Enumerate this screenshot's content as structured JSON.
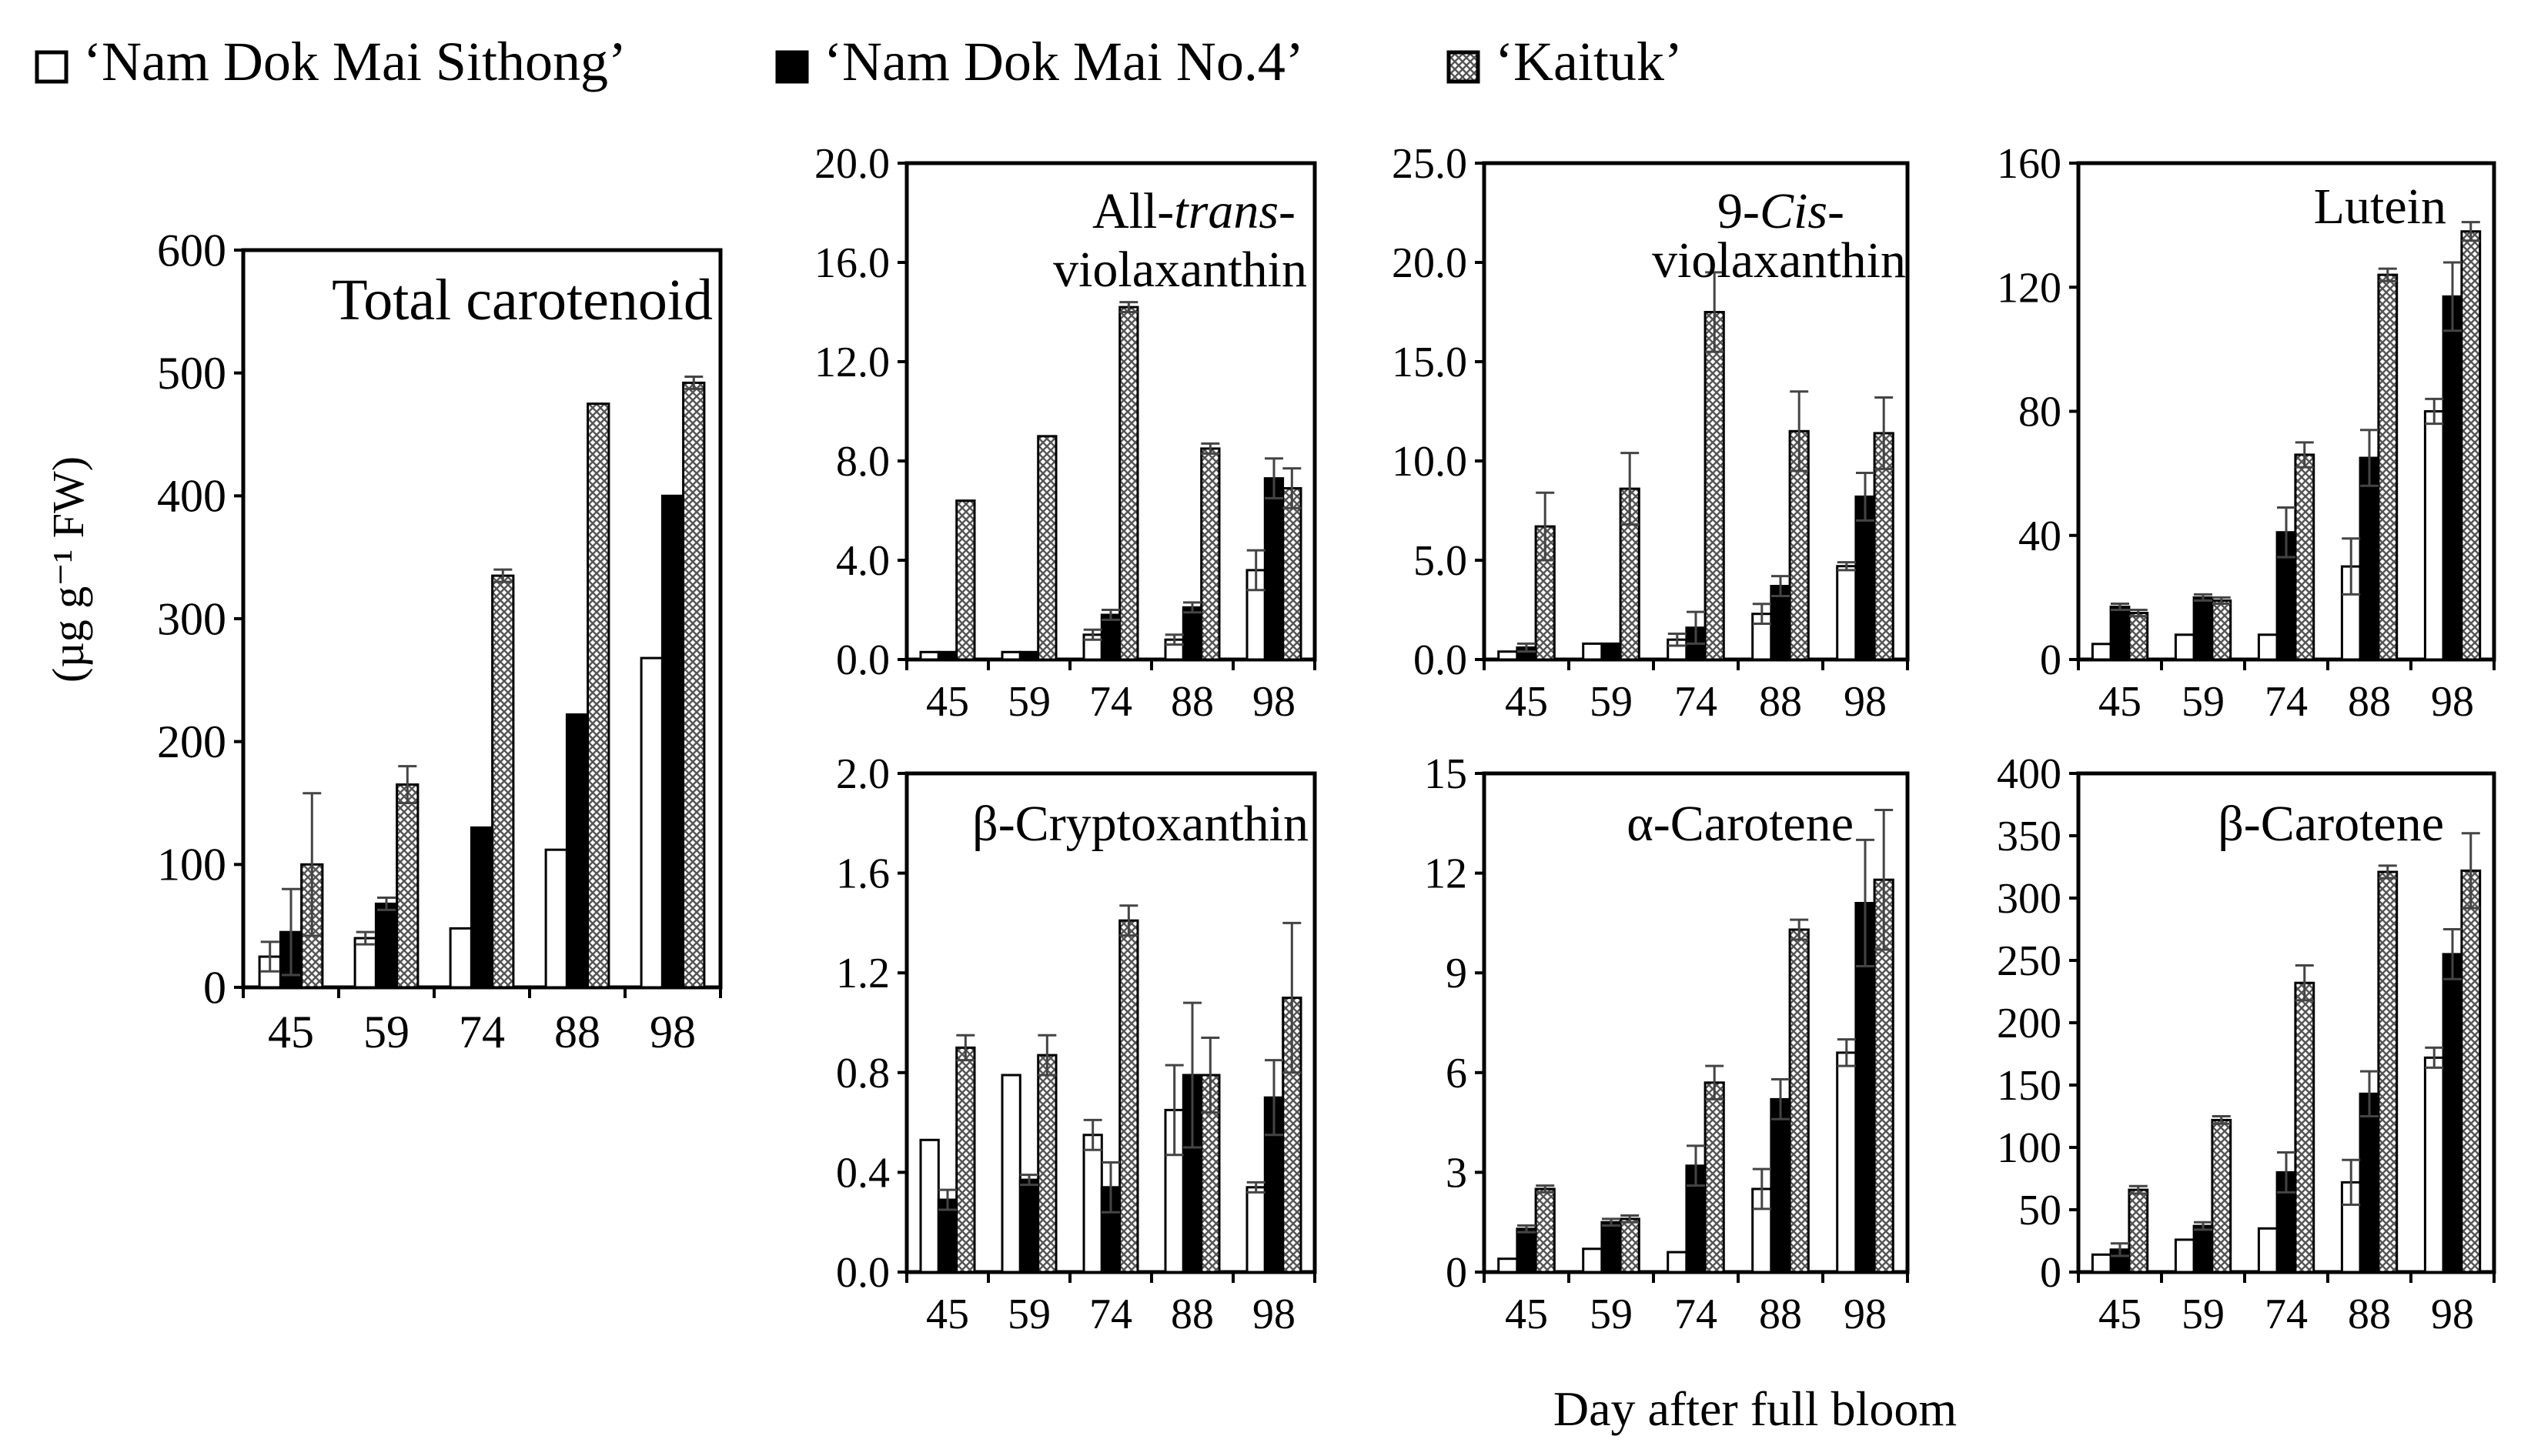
{
  "figure": {
    "legend": [
      {
        "key": "sithong",
        "label": "‘Nam Dok Mai Sithong’",
        "pattern": "white"
      },
      {
        "key": "no4",
        "label": "‘Nam Dok Mai No.4’",
        "pattern": "black"
      },
      {
        "key": "kaituk",
        "label": "‘Kaituk’",
        "pattern": "crosshatch"
      }
    ],
    "y_axis_label": "(µg g⁻¹ FW)",
    "x_axis_label": "Day after full bloom",
    "colors": {
      "sithong": "#ffffff",
      "no4": "#000000",
      "kaituk_fg": "#555555",
      "kaituk_bg": "#ffffff"
    }
  },
  "chart_data": [
    {
      "id": "total",
      "type": "bar",
      "title": "Total carotenoid",
      "categories": [
        "45",
        "59",
        "74",
        "88",
        "98"
      ],
      "ylim": [
        0,
        600
      ],
      "yticks": [
        "0",
        "100",
        "200",
        "300",
        "400",
        "500",
        "600"
      ],
      "series": [
        {
          "name": "‘Nam Dok Mai Sithong’",
          "values": [
            25,
            40,
            48,
            112,
            268
          ],
          "errors": [
            12,
            5,
            0,
            0,
            0
          ]
        },
        {
          "name": "‘Nam Dok Mai No.4’",
          "values": [
            45,
            68,
            130,
            222,
            400
          ],
          "errors": [
            35,
            5,
            0,
            0,
            0
          ]
        },
        {
          "name": "‘Kaituk’",
          "values": [
            100,
            165,
            335,
            475,
            492
          ],
          "errors": [
            58,
            15,
            5,
            0,
            5
          ]
        }
      ]
    },
    {
      "id": "trans-viola",
      "type": "bar",
      "title": [
        "All-",
        "trans",
        "-",
        "violaxanthin"
      ],
      "categories": [
        "45",
        "59",
        "74",
        "88",
        "98"
      ],
      "ylim": [
        0,
        20
      ],
      "yticks": [
        "0.0",
        "4.0",
        "8.0",
        "12.0",
        "16.0",
        "20.0"
      ],
      "series": [
        {
          "name": "‘Nam Dok Mai Sithong’",
          "values": [
            0.3,
            0.3,
            1.0,
            0.8,
            3.6
          ],
          "errors": [
            0,
            0,
            0.2,
            0.2,
            0.8
          ]
        },
        {
          "name": "‘Nam Dok Mai No.4’",
          "values": [
            0.3,
            0.3,
            1.8,
            2.1,
            7.3
          ],
          "errors": [
            0,
            0,
            0.2,
            0.2,
            0.8
          ]
        },
        {
          "name": "‘Kaituk’",
          "values": [
            6.4,
            9.0,
            14.2,
            8.5,
            6.9
          ],
          "errors": [
            0,
            0,
            0.2,
            0.2,
            0.8
          ]
        }
      ]
    },
    {
      "id": "cis-viola",
      "type": "bar",
      "title": [
        "9-",
        "Cis",
        "-",
        "violaxanthin"
      ],
      "categories": [
        "45",
        "59",
        "74",
        "88",
        "98"
      ],
      "ylim": [
        0,
        25
      ],
      "yticks": [
        "0.0",
        "5.0",
        "10.0",
        "15.0",
        "20.0",
        "25.0"
      ],
      "series": [
        {
          "name": "‘Nam Dok Mai Sithong’",
          "values": [
            0.4,
            0.8,
            1.0,
            2.3,
            4.7
          ],
          "errors": [
            0,
            0,
            0.3,
            0.5,
            0.2
          ]
        },
        {
          "name": "‘Nam Dok Mai No.4’",
          "values": [
            0.6,
            0.8,
            1.6,
            3.7,
            8.2
          ],
          "errors": [
            0.2,
            0,
            0.8,
            0.5,
            1.2
          ]
        },
        {
          "name": "‘Kaituk’",
          "values": [
            6.7,
            8.6,
            17.5,
            11.5,
            11.4
          ],
          "errors": [
            1.7,
            1.8,
            2.0,
            2.0,
            1.8
          ]
        }
      ]
    },
    {
      "id": "lutein",
      "type": "bar",
      "title": "Lutein",
      "categories": [
        "45",
        "59",
        "74",
        "88",
        "98"
      ],
      "ylim": [
        0,
        160
      ],
      "yticks": [
        "0",
        "40",
        "80",
        "120",
        "160"
      ],
      "series": [
        {
          "name": "‘Nam Dok Mai Sithong’",
          "values": [
            5,
            8,
            8,
            30,
            80
          ],
          "errors": [
            0,
            0,
            0,
            9,
            4
          ]
        },
        {
          "name": "‘Nam Dok Mai No.4’",
          "values": [
            17,
            20,
            41,
            65,
            117
          ],
          "errors": [
            1,
            1,
            8,
            9,
            11
          ]
        },
        {
          "name": "‘Kaituk’",
          "values": [
            15,
            19,
            66,
            124,
            138
          ],
          "errors": [
            1,
            1,
            4,
            2,
            3
          ]
        }
      ]
    },
    {
      "id": "bcrypto",
      "type": "bar",
      "title": "β-Cryptoxanthin",
      "categories": [
        "45",
        "59",
        "74",
        "88",
        "98"
      ],
      "ylim": [
        0,
        2.0
      ],
      "yticks": [
        "0.0",
        "0.4",
        "0.8",
        "1.2",
        "1.6",
        "2.0"
      ],
      "series": [
        {
          "name": "‘Nam Dok Mai Sithong’",
          "values": [
            0.53,
            0.79,
            0.55,
            0.65,
            0.34
          ],
          "errors": [
            0,
            0,
            0.06,
            0.18,
            0.02
          ]
        },
        {
          "name": "‘Nam Dok Mai No.4’",
          "values": [
            0.29,
            0.37,
            0.34,
            0.79,
            0.7
          ],
          "errors": [
            0.04,
            0.02,
            0.1,
            0.29,
            0.15
          ]
        },
        {
          "name": "‘Kaituk’",
          "values": [
            0.9,
            0.87,
            1.41,
            0.79,
            1.1
          ],
          "errors": [
            0.05,
            0.08,
            0.06,
            0.15,
            0.3
          ]
        }
      ]
    },
    {
      "id": "acarotene",
      "type": "bar",
      "title": "α-Carotene",
      "categories": [
        "45",
        "59",
        "74",
        "88",
        "98"
      ],
      "ylim": [
        0,
        15
      ],
      "yticks": [
        "0",
        "3",
        "6",
        "9",
        "12",
        "15"
      ],
      "series": [
        {
          "name": "‘Nam Dok Mai Sithong’",
          "values": [
            0.4,
            0.7,
            0.6,
            2.5,
            6.6
          ],
          "errors": [
            0,
            0,
            0,
            0.6,
            0.4
          ]
        },
        {
          "name": "‘Nam Dok Mai No.4’",
          "values": [
            1.3,
            1.5,
            3.2,
            5.2,
            11.1
          ],
          "errors": [
            0.1,
            0.1,
            0.6,
            0.6,
            1.9
          ]
        },
        {
          "name": "‘Kaituk’",
          "values": [
            2.5,
            1.6,
            5.7,
            10.3,
            11.8
          ],
          "errors": [
            0.1,
            0.1,
            0.5,
            0.3,
            2.1
          ]
        }
      ]
    },
    {
      "id": "bcarotene",
      "type": "bar",
      "title": "β-Carotene",
      "categories": [
        "45",
        "59",
        "74",
        "88",
        "98"
      ],
      "ylim": [
        0,
        400
      ],
      "yticks": [
        "0",
        "50",
        "100",
        "150",
        "200",
        "250",
        "300",
        "350",
        "400"
      ],
      "series": [
        {
          "name": "‘Nam Dok Mai Sithong’",
          "values": [
            14,
            26,
            35,
            72,
            172
          ],
          "errors": [
            0,
            0,
            0,
            18,
            8
          ]
        },
        {
          "name": "‘Nam Dok Mai No.4’",
          "values": [
            18,
            37,
            80,
            143,
            255
          ],
          "errors": [
            5,
            3,
            16,
            18,
            20
          ]
        },
        {
          "name": "‘Kaituk’",
          "values": [
            66,
            122,
            232,
            321,
            322
          ],
          "errors": [
            3,
            3,
            14,
            5,
            30
          ]
        }
      ]
    }
  ]
}
